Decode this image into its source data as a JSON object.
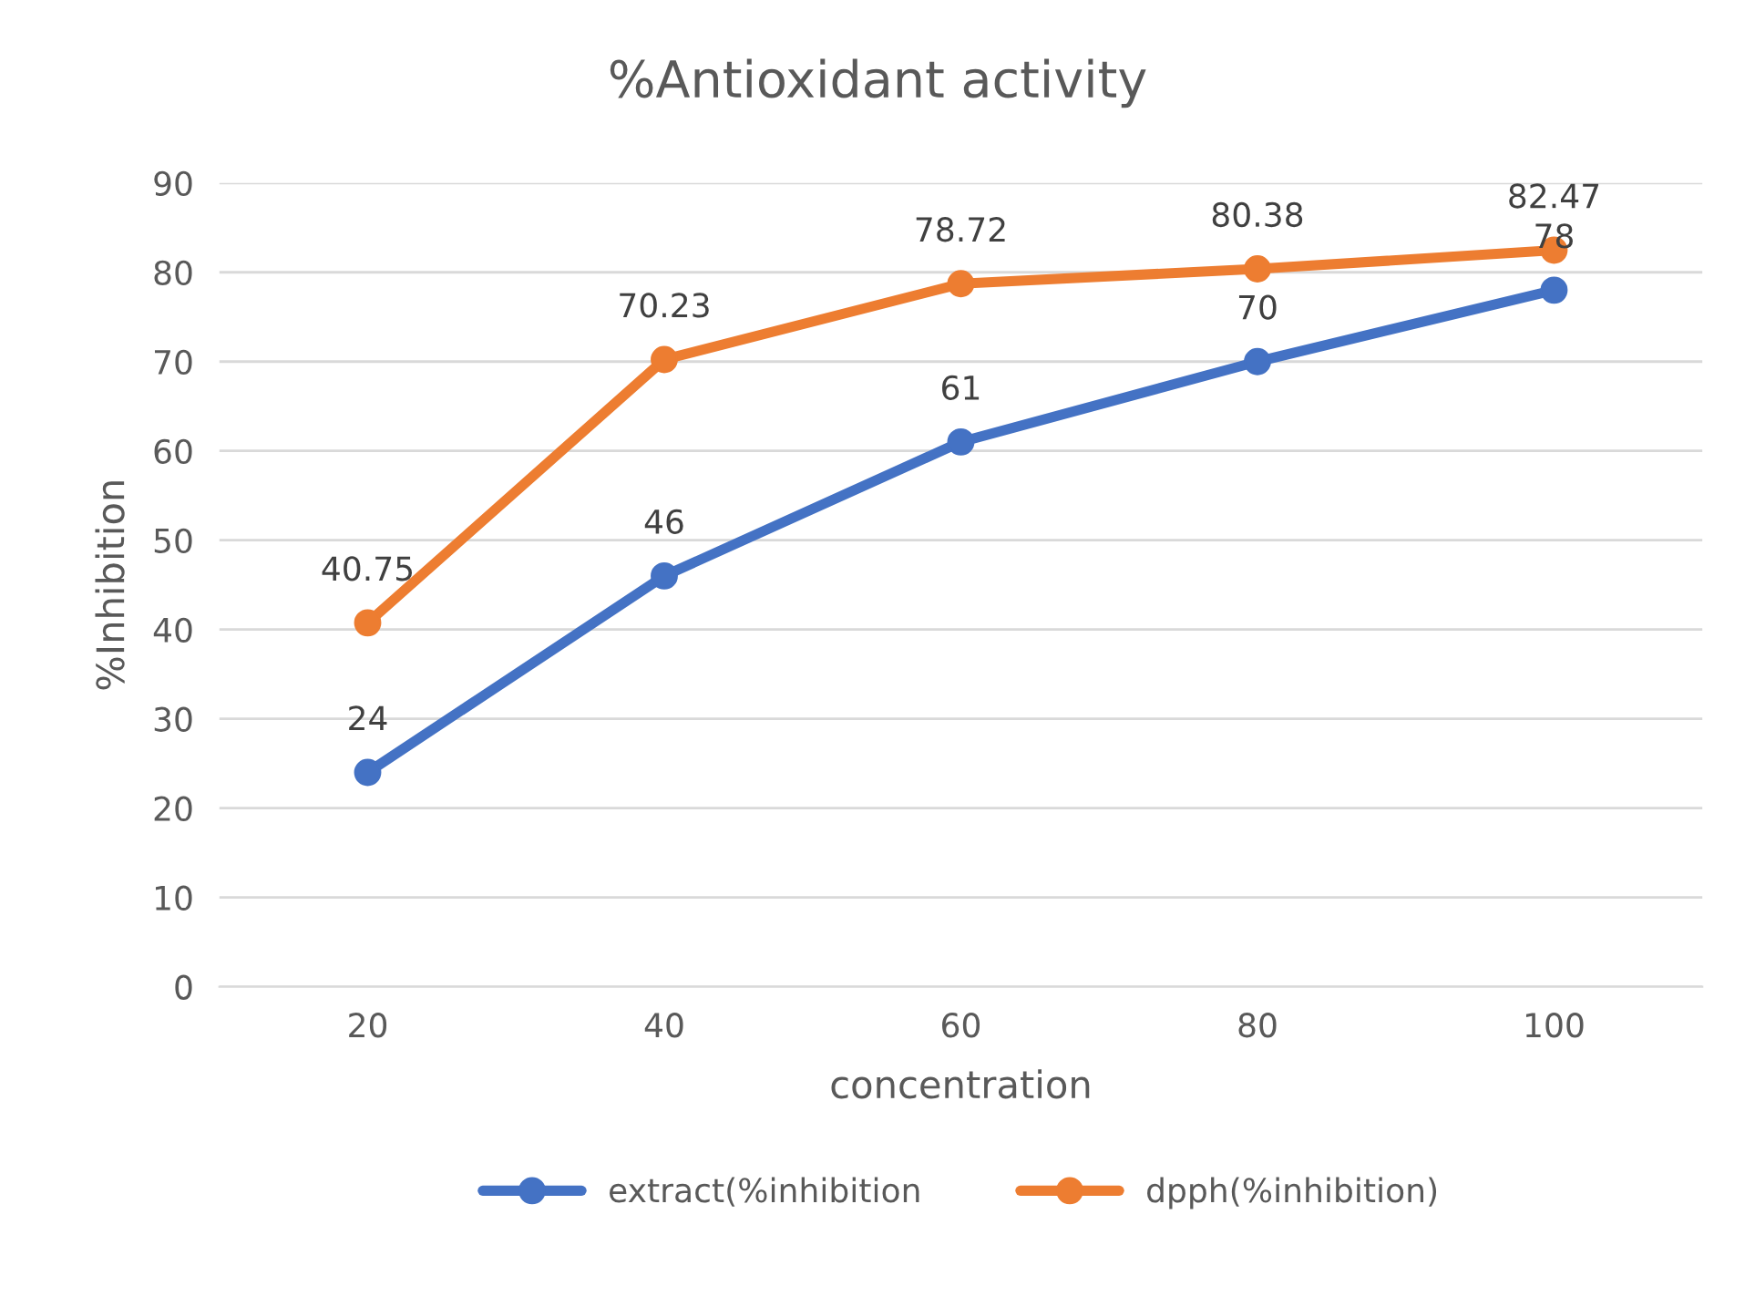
{
  "chart_data": {
    "type": "line",
    "title": "%Antioxidant activity",
    "xlabel": "concentration",
    "ylabel": "%Inhibition",
    "categories": [
      "20",
      "40",
      "60",
      "80",
      "100"
    ],
    "series": [
      {
        "name": "extract(%inhibition",
        "color": "#4472c4",
        "values": [
          24,
          46,
          61,
          70,
          78
        ]
      },
      {
        "name": "dpph(%inhibition)",
        "color": "#ed7d31",
        "values": [
          40.75,
          70.23,
          78.72,
          80.38,
          82.47
        ]
      }
    ],
    "ylim": [
      0,
      90
    ],
    "yticks": [
      0,
      10,
      20,
      30,
      40,
      50,
      60,
      70,
      80,
      90
    ],
    "grid": "y",
    "legend": "bottom",
    "marker": "circle",
    "line_style": "solid",
    "data_labels": true
  }
}
